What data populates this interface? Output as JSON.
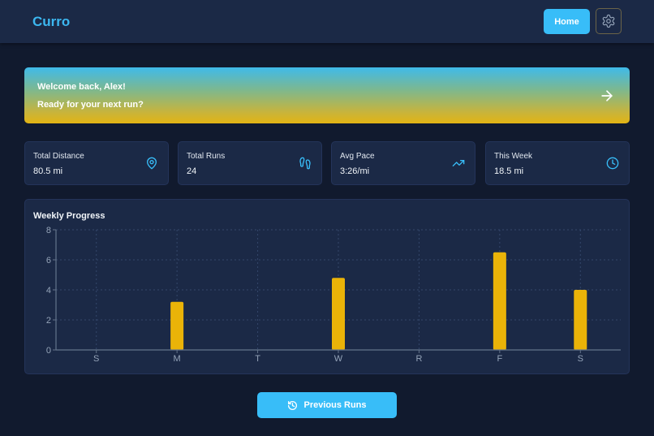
{
  "header": {
    "logo": "Curro",
    "home_label": "Home",
    "settings_icon": "gear-icon"
  },
  "banner": {
    "line1": "Welcome back, Alex!",
    "line2": "Ready for your next run?",
    "icon": "arrow-right-icon",
    "gradient_top": "#3fbaea",
    "gradient_bottom": "#e3b413"
  },
  "stats": [
    {
      "label": "Total Distance",
      "value": "80.5 mi",
      "icon": "map-pin-icon"
    },
    {
      "label": "Total Runs",
      "value": "24",
      "icon": "footprints-icon"
    },
    {
      "label": "Avg Pace",
      "value": "3:26/mi",
      "icon": "trending-up-icon"
    },
    {
      "label": "This Week",
      "value": "18.5 mi",
      "icon": "clock-icon"
    }
  ],
  "chart": {
    "title": "Weekly Progress"
  },
  "chart_data": {
    "type": "bar",
    "title": "Weekly Progress",
    "categories": [
      "S",
      "M",
      "T",
      "W",
      "R",
      "F",
      "S"
    ],
    "values": [
      0,
      3.2,
      0,
      4.8,
      0,
      6.5,
      4.0
    ],
    "xlabel": "",
    "ylabel": "",
    "ylim": [
      0,
      8
    ],
    "yticks": [
      0,
      2,
      4,
      6,
      8
    ],
    "grid": true,
    "bar_color": "#eab308"
  },
  "footer": {
    "previous_runs_label": "Previous Runs",
    "previous_runs_icon": "history-icon"
  },
  "colors": {
    "accent": "#38bdf8",
    "background": "#111a2e",
    "card": "#1b2946",
    "bar": "#eab308"
  }
}
